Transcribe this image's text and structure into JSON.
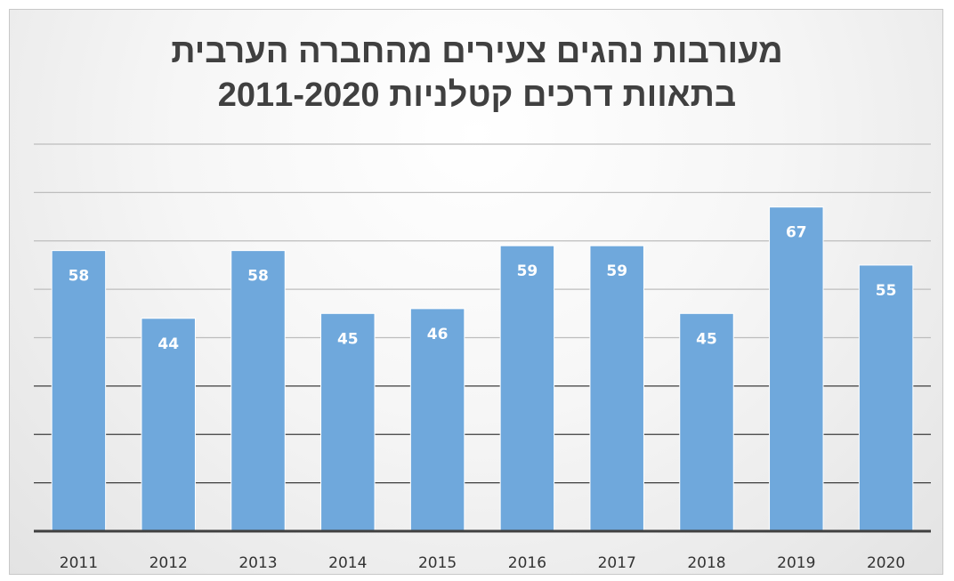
{
  "chart_data": {
    "type": "bar",
    "title_lines": [
      "מעורבות נהגים צעירים מהחברה הערבית",
      "בתאוות דרכים קטלניות 2011-2020"
    ],
    "categories": [
      "2011",
      "2012",
      "2013",
      "2014",
      "2015",
      "2016",
      "2017",
      "2018",
      "2019",
      "2020"
    ],
    "values": [
      58,
      44,
      58,
      45,
      46,
      59,
      59,
      45,
      67,
      55
    ],
    "ylim": [
      0,
      80
    ],
    "grid": true,
    "legend": "none",
    "data_labels": true,
    "colors": {
      "bar": "#6fa8dc",
      "bar_edge": "#ffffff",
      "grid": "#bdbdbd",
      "axis": "#404040"
    }
  }
}
